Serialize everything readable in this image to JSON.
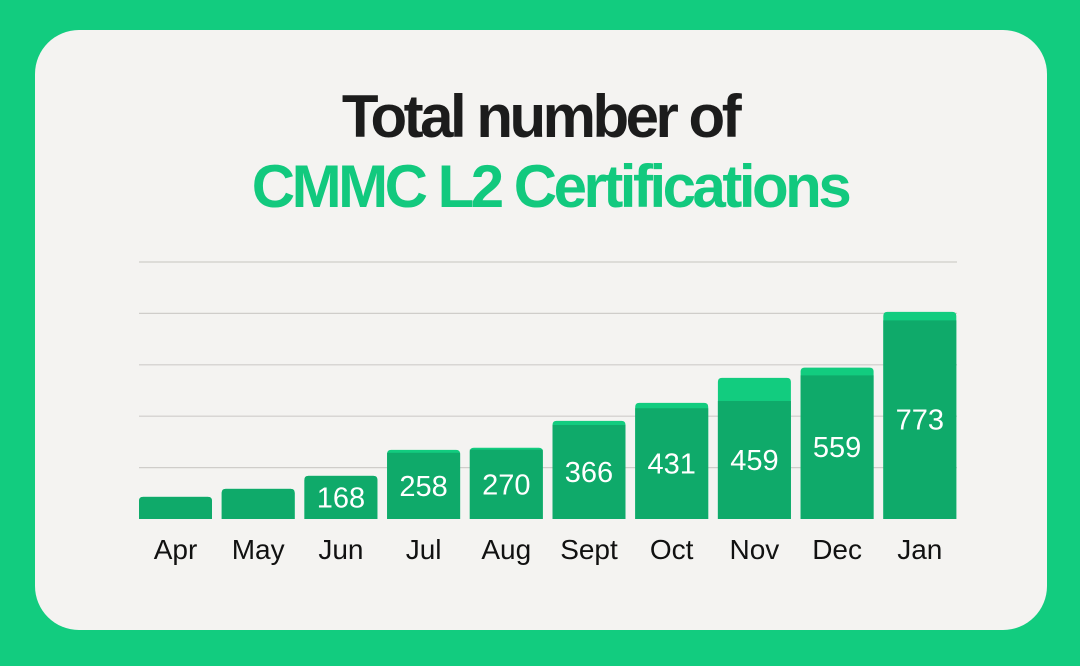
{
  "chart_data": {
    "type": "bar",
    "title_line1": "Total number of",
    "title_line2": "CMMC L2 Certifications",
    "categories": [
      "Apr",
      "May",
      "Jun",
      "Jul",
      "Aug",
      "Sept",
      "Oct",
      "Nov",
      "Dec",
      "Jan"
    ],
    "series": [
      {
        "name": "Certifications",
        "values": [
          86,
          117,
          168,
          258,
          270,
          366,
          431,
          459,
          559,
          773
        ],
        "labeled": [
          false,
          false,
          true,
          true,
          true,
          true,
          true,
          true,
          true,
          true
        ],
        "color": "#0faa6a"
      },
      {
        "name": "Total (light cap)",
        "values": [
          86,
          117,
          168,
          269,
          277,
          382,
          452,
          549,
          589,
          806
        ],
        "color": "#12cc7f"
      }
    ],
    "ylim": [
      0,
      1000
    ],
    "gridlines": [
      200,
      400,
      600,
      800,
      1000
    ],
    "grid": true,
    "xlabel": "",
    "ylabel": ""
  },
  "colors": {
    "background": "#12cc7f",
    "card": "#f4f3f1",
    "title_accent": "#12c97e",
    "grid": "#cfcdca"
  }
}
